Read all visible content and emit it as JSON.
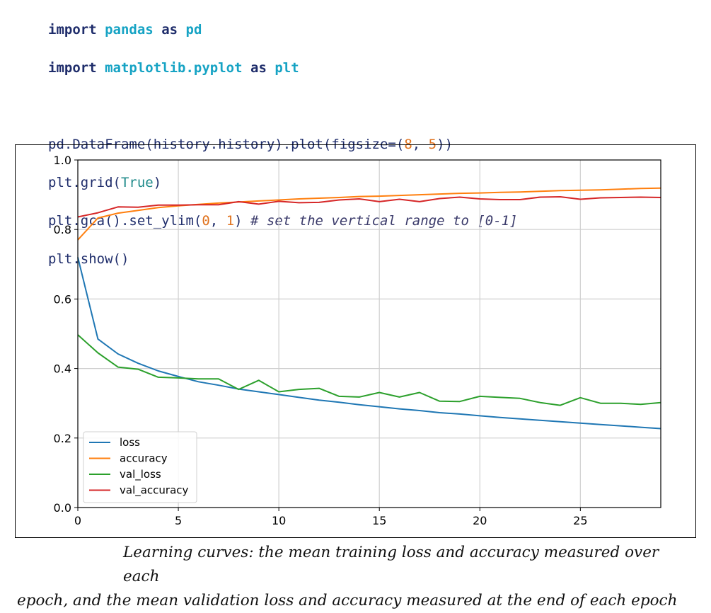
{
  "code": {
    "line1": {
      "kw1": "import",
      "mod": "pandas",
      "kw2": "as",
      "alias": "pd"
    },
    "line2": {
      "kw1": "import",
      "mod": "matplotlib.pyplot",
      "kw2": "as",
      "alias": "plt"
    },
    "line3": {
      "pre": "pd.DataFrame(history.history).plot(figsize=(",
      "n1": "8",
      "mid": ", ",
      "n2": "5",
      "post": "))"
    },
    "line4": {
      "pre": "plt.grid(",
      "const": "True",
      "post": ")"
    },
    "line5": {
      "pre": "plt.gca().set_ylim(",
      "n1": "0",
      "mid": ", ",
      "n2": "1",
      "post": ") ",
      "comment": "# set the vertical range to [0-1]"
    },
    "line6": {
      "pre": "plt.show()"
    }
  },
  "caption": {
    "line1": "Learning curves: the mean training loss and accuracy measured over each",
    "line2": "epoch, and the mean validation loss and accuracy measured at the end of each epoch"
  },
  "chart_data": {
    "type": "line",
    "xlabel": "",
    "ylabel": "",
    "xlim": [
      0,
      29
    ],
    "ylim": [
      0,
      1
    ],
    "grid": true,
    "legend_position": "lower-left",
    "xticks": [
      "0",
      "5",
      "10",
      "15",
      "20",
      "25"
    ],
    "yticks": [
      "0.0",
      "0.2",
      "0.4",
      "0.6",
      "0.8",
      "1.0"
    ],
    "x": [
      0,
      1,
      2,
      3,
      4,
      5,
      6,
      7,
      8,
      9,
      10,
      11,
      12,
      13,
      14,
      15,
      16,
      17,
      18,
      19,
      20,
      21,
      22,
      23,
      24,
      25,
      26,
      27,
      28,
      29
    ],
    "series": [
      {
        "name": "loss",
        "color": "#1f77b4",
        "values": [
          0.72,
          0.485,
          0.442,
          0.415,
          0.393,
          0.377,
          0.362,
          0.352,
          0.341,
          0.333,
          0.325,
          0.317,
          0.309,
          0.303,
          0.296,
          0.29,
          0.284,
          0.279,
          0.273,
          0.269,
          0.264,
          0.259,
          0.255,
          0.251,
          0.247,
          0.243,
          0.239,
          0.235,
          0.231,
          0.227
        ]
      },
      {
        "name": "accuracy",
        "color": "#ff7f0e",
        "values": [
          0.77,
          0.833,
          0.847,
          0.855,
          0.863,
          0.868,
          0.872,
          0.876,
          0.879,
          0.882,
          0.885,
          0.888,
          0.89,
          0.892,
          0.895,
          0.896,
          0.898,
          0.9,
          0.902,
          0.904,
          0.905,
          0.907,
          0.908,
          0.91,
          0.912,
          0.913,
          0.914,
          0.916,
          0.918,
          0.919
        ]
      },
      {
        "name": "val_loss",
        "color": "#2ca02c",
        "values": [
          0.497,
          0.445,
          0.404,
          0.398,
          0.375,
          0.373,
          0.37,
          0.37,
          0.34,
          0.366,
          0.333,
          0.34,
          0.343,
          0.32,
          0.318,
          0.331,
          0.318,
          0.331,
          0.306,
          0.305,
          0.32,
          0.317,
          0.314,
          0.302,
          0.294,
          0.316,
          0.3,
          0.3,
          0.297,
          0.302
        ]
      },
      {
        "name": "val_accuracy",
        "color": "#d62728",
        "values": [
          0.836,
          0.848,
          0.865,
          0.864,
          0.87,
          0.87,
          0.871,
          0.871,
          0.88,
          0.873,
          0.881,
          0.877,
          0.878,
          0.885,
          0.888,
          0.88,
          0.887,
          0.88,
          0.889,
          0.893,
          0.888,
          0.886,
          0.886,
          0.893,
          0.894,
          0.887,
          0.891,
          0.892,
          0.893,
          0.892
        ]
      }
    ]
  }
}
